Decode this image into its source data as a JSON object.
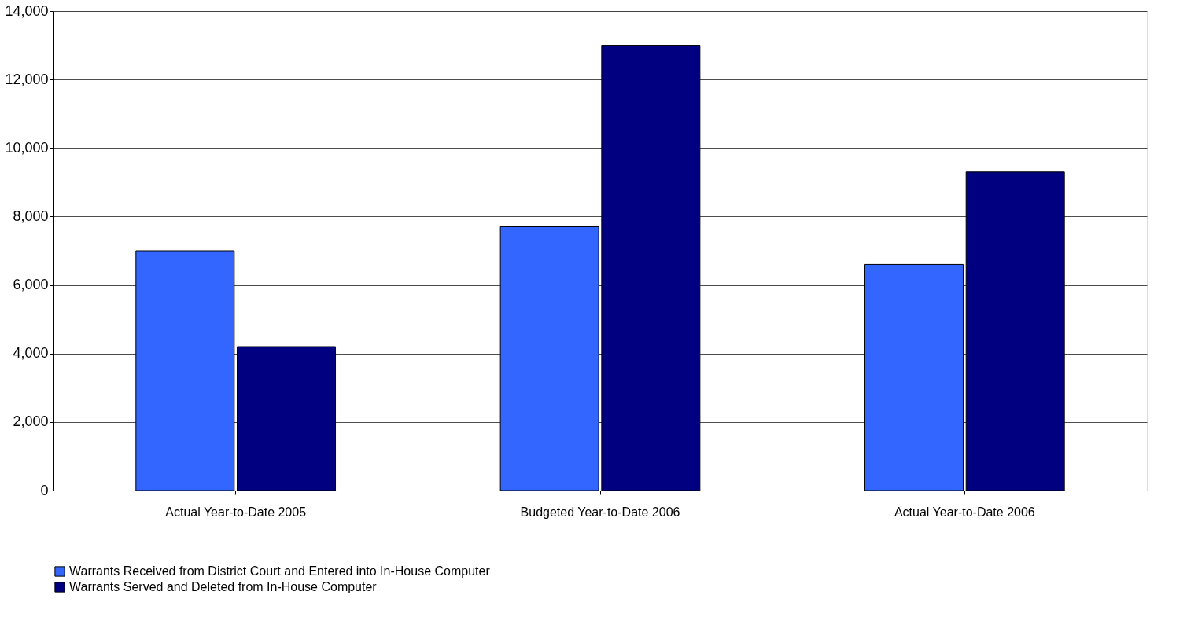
{
  "chart_data": {
    "type": "bar",
    "categories": [
      "Actual Year-to-Date 2005",
      "Budgeted Year-to-Date 2006",
      "Actual Year-to-Date 2006"
    ],
    "series": [
      {
        "name": "Warrants Received from District Court and Entered into In-House Computer",
        "color": "#3366ff",
        "values": [
          7000,
          7700,
          6600
        ]
      },
      {
        "name": "Warrants Served and Deleted from In-House Computer",
        "color": "#000080",
        "values": [
          4200,
          13000,
          9300
        ]
      }
    ],
    "ylim": [
      0,
      14000
    ],
    "yticks": [
      {
        "value": 0,
        "label": "0"
      },
      {
        "value": 2000,
        "label": "2,000"
      },
      {
        "value": 4000,
        "label": "4,000"
      },
      {
        "value": 6000,
        "label": "6,000"
      },
      {
        "value": 8000,
        "label": "8,000"
      },
      {
        "value": 10000,
        "label": "10,000"
      },
      {
        "value": 12000,
        "label": "12,000"
      },
      {
        "value": 14000,
        "label": "14,000"
      }
    ],
    "grid": "y",
    "legend": "bottom"
  }
}
